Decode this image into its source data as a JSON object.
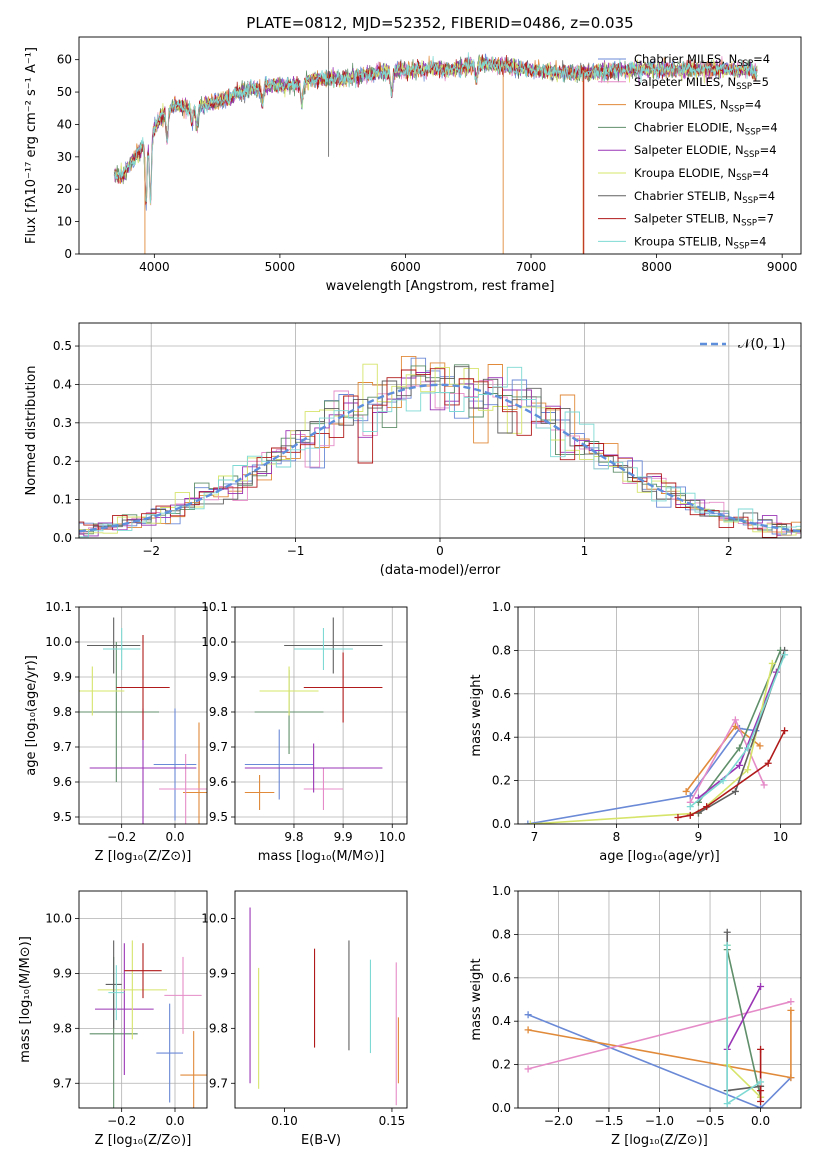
{
  "colors": {
    "c0": "#6a89d6",
    "c1": "#e08a3a",
    "c2": "#e58cc8",
    "c3": "#5f8f6a",
    "c4": "#9a35b5",
    "c5": "#d6e46a",
    "c6": "#606060",
    "c7": "#b01a1a",
    "c8": "#7ed9d4",
    "normal": "#5e8fdc"
  },
  "chart_data": [
    {
      "id": "spectrum",
      "type": "line",
      "title": "PLATE=0812, MJD=52352, FIBERID=0486, z=0.035",
      "xlabel": "wavelength [Angstrom, rest frame]",
      "ylabel": "Flux [fλ10⁻¹⁷ erg cm⁻² s⁻¹ A⁻¹]",
      "xlim": [
        3400,
        9150
      ],
      "ylim": [
        0,
        67
      ],
      "xticks": [
        4000,
        5000,
        6000,
        7000,
        8000,
        9000
      ],
      "yticks": [
        0,
        10,
        20,
        30,
        40,
        50,
        60
      ],
      "grid": false,
      "legend_position": "top-right",
      "continuum": {
        "x": [
          3680,
          3750,
          3850,
          3950,
          4050,
          4150,
          4300,
          4500,
          4700,
          4900,
          5100,
          5300,
          5500,
          5800,
          6100,
          6400,
          6600,
          6800,
          7000,
          7200,
          7500,
          7800,
          8100,
          8400,
          8700,
          8800
        ],
        "y": [
          25,
          24,
          30,
          36,
          42,
          46,
          45,
          47,
          50,
          52,
          52,
          54,
          54,
          56,
          57,
          57,
          59,
          58,
          57,
          56,
          56,
          57,
          57,
          57,
          57,
          56
        ]
      },
      "legend": [
        {
          "label": "Chabrier MILES, N",
          "sub": "SSP",
          "suffix": "=4",
          "color": "c0"
        },
        {
          "label": "Salpeter MILES, N",
          "sub": "SSP",
          "suffix": "=5",
          "color": "c2"
        },
        {
          "label": "Kroupa MILES, N",
          "sub": "SSP",
          "suffix": "=4",
          "color": "c1"
        },
        {
          "label": "Chabrier ELODIE, N",
          "sub": "SSP",
          "suffix": "=4",
          "color": "c3"
        },
        {
          "label": "Salpeter ELODIE, N",
          "sub": "SSP",
          "suffix": "=4",
          "color": "c4"
        },
        {
          "label": "Kroupa ELODIE, N",
          "sub": "SSP",
          "suffix": "=4",
          "color": "c5"
        },
        {
          "label": "Chabrier STELIB, N",
          "sub": "SSP",
          "suffix": "=4",
          "color": "c6"
        },
        {
          "label": "Salpeter STELIB, N",
          "sub": "SSP",
          "suffix": "=7",
          "color": "c7"
        },
        {
          "label": "Kroupa STELIB, N",
          "sub": "SSP",
          "suffix": "=4",
          "color": "c8"
        }
      ]
    },
    {
      "id": "residuals",
      "type": "histogram",
      "xlabel": "(data-model)/error",
      "ylabel": "Normed distribution",
      "xlim": [
        -2.5,
        2.5
      ],
      "ylim": [
        0,
        0.56
      ],
      "xticks": [
        -2,
        -1,
        0,
        1,
        2
      ],
      "yticks": [
        0.0,
        0.1,
        0.2,
        0.3,
        0.4,
        0.5
      ],
      "grid": true,
      "legend_position": "top-right",
      "legend_label": "𝒩(0, 1)",
      "bin_width": 0.1
    },
    {
      "id": "age_vs_Z",
      "type": "errorbar",
      "xlabel": "Z [log₁₀(Z/Z⊙)]",
      "ylabel": "age  [log₁₀(age/yr)]",
      "xlim": [
        -0.36,
        0.12
      ],
      "ylim": [
        9.48,
        10.1
      ],
      "xticks": [
        -0.2,
        0.0
      ],
      "yticks": [
        9.5,
        9.6,
        9.7,
        9.8,
        9.9,
        10.0,
        10.1
      ],
      "grid": true,
      "points": [
        {
          "color": "c0",
          "x": 0.0,
          "xerr": 0.08,
          "y": 9.65,
          "yerr": 0.16
        },
        {
          "color": "c1",
          "x": 0.09,
          "xerr": 0.06,
          "y": 9.57,
          "yerr": 0.2
        },
        {
          "color": "c2",
          "x": 0.04,
          "xerr": 0.1,
          "y": 9.58,
          "yerr": 0.1
        },
        {
          "color": "c3",
          "x": -0.22,
          "xerr": 0.16,
          "y": 9.8,
          "yerr": 0.2
        },
        {
          "color": "c4",
          "x": -0.12,
          "xerr": 0.2,
          "y": 9.64,
          "yerr": 0.17
        },
        {
          "color": "c5",
          "x": -0.31,
          "xerr": 0.12,
          "y": 9.86,
          "yerr": 0.07
        },
        {
          "color": "c6",
          "x": -0.23,
          "xerr": 0.1,
          "y": 9.99,
          "yerr": 0.08
        },
        {
          "color": "c7",
          "x": -0.12,
          "xerr": 0.1,
          "y": 9.87,
          "yerr": 0.15
        },
        {
          "color": "c8",
          "x": -0.2,
          "xerr": 0.07,
          "y": 9.98,
          "yerr": 0.06
        }
      ]
    },
    {
      "id": "age_vs_mass",
      "type": "errorbar",
      "xlabel": "mass [log₁₀(M/M⊙)]",
      "ylabel": "",
      "xlim": [
        9.68,
        10.03
      ],
      "ylim": [
        9.48,
        10.1
      ],
      "xticks": [
        9.8,
        9.9,
        10.0
      ],
      "yticks": [
        9.5,
        9.6,
        9.7,
        9.8,
        9.9,
        10.0,
        10.1
      ],
      "grid": true,
      "points": [
        {
          "color": "c0",
          "x": 9.77,
          "xerr": 0.07,
          "y": 9.65,
          "yerr": 0.1
        },
        {
          "color": "c1",
          "x": 9.73,
          "xerr": 0.03,
          "y": 9.57,
          "yerr": 0.05
        },
        {
          "color": "c2",
          "x": 9.86,
          "xerr": 0.04,
          "y": 9.58,
          "yerr": 0.06
        },
        {
          "color": "c3",
          "x": 9.79,
          "xerr": 0.07,
          "y": 9.8,
          "yerr": 0.12
        },
        {
          "color": "c4",
          "x": 9.84,
          "xerr": 0.14,
          "y": 9.64,
          "yerr": 0.07
        },
        {
          "color": "c5",
          "x": 9.79,
          "xerr": 0.06,
          "y": 9.86,
          "yerr": 0.07
        },
        {
          "color": "c6",
          "x": 9.88,
          "xerr": 0.1,
          "y": 9.99,
          "yerr": 0.08
        },
        {
          "color": "c7",
          "x": 9.9,
          "xerr": 0.08,
          "y": 9.87,
          "yerr": 0.1
        },
        {
          "color": "c8",
          "x": 9.86,
          "xerr": 0.06,
          "y": 9.98,
          "yerr": 0.06
        }
      ]
    },
    {
      "id": "weight_vs_age",
      "type": "line",
      "xlabel": "age  [log₁₀(age/yr)]",
      "ylabel": "mass weight",
      "xlim": [
        6.8,
        10.25
      ],
      "ylim": [
        0,
        1.0
      ],
      "xticks": [
        7,
        8,
        9,
        10
      ],
      "yticks": [
        0.0,
        0.2,
        0.4,
        0.6,
        0.8,
        1.0
      ],
      "grid": true,
      "series": [
        {
          "color": "c0",
          "x": [
            6.92,
            8.9,
            9.5,
            9.7
          ],
          "y": [
            0.0,
            0.13,
            0.44,
            0.43
          ]
        },
        {
          "color": "c1",
          "x": [
            8.85,
            9.45,
            9.75
          ],
          "y": [
            0.15,
            0.45,
            0.36
          ]
        },
        {
          "color": "c2",
          "x": [
            8.9,
            9.45,
            9.8
          ],
          "y": [
            0.1,
            0.48,
            0.18
          ]
        },
        {
          "color": "c3",
          "x": [
            9.0,
            9.5,
            10.0
          ],
          "y": [
            0.1,
            0.35,
            0.8
          ]
        },
        {
          "color": "c4",
          "x": [
            9.0,
            9.5,
            9.95
          ],
          "y": [
            0.12,
            0.27,
            0.7
          ]
        },
        {
          "color": "c5",
          "x": [
            6.95,
            9.0,
            9.6,
            9.9
          ],
          "y": [
            0.0,
            0.05,
            0.25,
            0.74
          ]
        },
        {
          "color": "c6",
          "x": [
            9.0,
            9.45,
            10.05
          ],
          "y": [
            0.05,
            0.15,
            0.8
          ]
        },
        {
          "color": "c7",
          "x": [
            8.75,
            8.9,
            9.1,
            9.85,
            10.05
          ],
          "y": [
            0.03,
            0.04,
            0.08,
            0.28,
            0.43
          ]
        },
        {
          "color": "c8",
          "x": [
            8.9,
            9.3,
            9.6,
            10.05
          ],
          "y": [
            0.08,
            0.2,
            0.35,
            0.78
          ]
        }
      ]
    },
    {
      "id": "mass_vs_Z",
      "type": "errorbar",
      "xlabel": "Z [log₁₀(Z/Z⊙)]",
      "ylabel": "mass [log₁₀(M/M⊙)]",
      "xlim": [
        -0.36,
        0.12
      ],
      "ylim": [
        9.655,
        10.05
      ],
      "xticks": [
        -0.2,
        0.0
      ],
      "yticks": [
        9.7,
        9.8,
        9.9,
        10.0
      ],
      "grid": true,
      "points": [
        {
          "color": "c0",
          "x": -0.02,
          "xerr": 0.05,
          "y": 9.755,
          "yerr": 0.09
        },
        {
          "color": "c1",
          "x": 0.07,
          "xerr": 0.05,
          "y": 9.715,
          "yerr": 0.08
        },
        {
          "color": "c2",
          "x": 0.03,
          "xerr": 0.07,
          "y": 9.86,
          "yerr": 0.07
        },
        {
          "color": "c3",
          "x": -0.23,
          "xerr": 0.09,
          "y": 9.79,
          "yerr": 0.14
        },
        {
          "color": "c4",
          "x": -0.19,
          "xerr": 0.11,
          "y": 9.835,
          "yerr": 0.12
        },
        {
          "color": "c5",
          "x": -0.16,
          "xerr": 0.13,
          "y": 9.87,
          "yerr": 0.09
        },
        {
          "color": "c6",
          "x": -0.23,
          "xerr": 0.03,
          "y": 9.88,
          "yerr": 0.08
        },
        {
          "color": "c7",
          "x": -0.12,
          "xerr": 0.07,
          "y": 9.905,
          "yerr": 0.05
        },
        {
          "color": "c8",
          "x": -0.22,
          "xerr": 0.03,
          "y": 9.865,
          "yerr": 0.05
        }
      ]
    },
    {
      "id": "mass_vs_EBV",
      "type": "errorbar",
      "xlabel": "E(B-V)",
      "ylabel": "",
      "xlim": [
        0.077,
        0.157
      ],
      "ylim": [
        9.655,
        10.05
      ],
      "xticks": [
        0.1,
        0.15
      ],
      "yticks": [
        9.7,
        9.8,
        9.9,
        10.0
      ],
      "grid": false,
      "points": [
        {
          "color": "c4",
          "x": 0.084,
          "y": 9.86,
          "yerr": 0.16
        },
        {
          "color": "c5",
          "x": 0.088,
          "y": 9.8,
          "yerr": 0.11
        },
        {
          "color": "c7",
          "x": 0.114,
          "y": 9.855,
          "yerr": 0.09
        },
        {
          "color": "c6",
          "x": 0.13,
          "y": 9.86,
          "yerr": 0.1
        },
        {
          "color": "c8",
          "x": 0.14,
          "y": 9.84,
          "yerr": 0.085
        },
        {
          "color": "c1",
          "x": 0.153,
          "y": 9.76,
          "yerr": 0.06
        },
        {
          "color": "c2",
          "x": 0.152,
          "y": 9.79,
          "yerr": 0.13
        }
      ]
    },
    {
      "id": "weight_vs_Z",
      "type": "line",
      "xlabel": "Z [log₁₀(Z/Z⊙)]",
      "ylabel": "mass weight",
      "xlim": [
        -2.4,
        0.4
      ],
      "ylim": [
        0,
        1.0
      ],
      "xticks": [
        -2.0,
        -1.5,
        -1.0,
        -0.5,
        0.0
      ],
      "yticks": [
        0.0,
        0.2,
        0.4,
        0.6,
        0.8,
        1.0
      ],
      "grid": true,
      "series": [
        {
          "color": "c0",
          "x": [
            -2.3,
            0.0,
            0.3
          ],
          "y": [
            0.43,
            0.0,
            0.14
          ]
        },
        {
          "color": "c1",
          "x": [
            -2.3,
            0.3,
            0.3
          ],
          "y": [
            0.36,
            0.14,
            0.45
          ]
        },
        {
          "color": "c2",
          "x": [
            -2.3,
            0.3
          ],
          "y": [
            0.18,
            0.49
          ]
        },
        {
          "color": "c3",
          "x": [
            -0.33,
            0.0,
            0.0
          ],
          "y": [
            0.73,
            0.05,
            0.1
          ]
        },
        {
          "color": "c4",
          "x": [
            -0.33,
            0.0
          ],
          "y": [
            0.27,
            0.56
          ]
        },
        {
          "color": "c5",
          "x": [
            -0.33,
            -0.33,
            0.0
          ],
          "y": [
            0.75,
            0.2,
            0.05
          ]
        },
        {
          "color": "c6",
          "x": [
            -0.33,
            -0.33,
            0.0
          ],
          "y": [
            0.81,
            0.08,
            0.1
          ]
        },
        {
          "color": "c7",
          "x": [
            0.0,
            0.0,
            0.0
          ],
          "y": [
            0.27,
            0.08,
            0.03
          ]
        },
        {
          "color": "c8",
          "x": [
            -0.33,
            -0.33,
            0.0
          ],
          "y": [
            0.75,
            0.02,
            0.12
          ]
        }
      ]
    }
  ]
}
